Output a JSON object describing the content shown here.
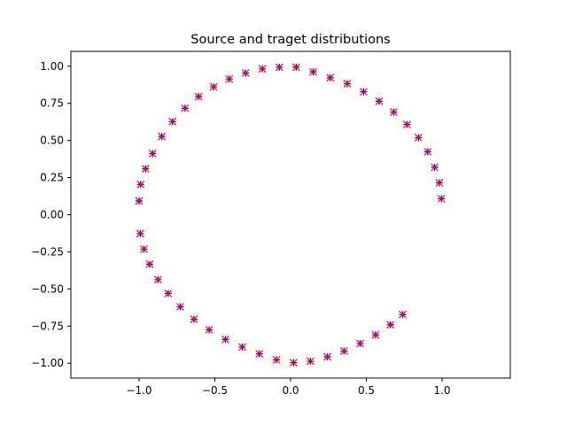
{
  "chart_data": {
    "type": "scatter",
    "title": "Source and traget distributions",
    "xlabel": "",
    "ylabel": "",
    "xlim": [
      -1.45,
      1.45
    ],
    "ylim": [
      -1.1,
      1.1
    ],
    "xticks": [
      -1.0,
      -0.5,
      0.0,
      0.5,
      1.0
    ],
    "xtick_labels": [
      "−1.0",
      "−0.5",
      "0.0",
      "0.5",
      "1.0"
    ],
    "yticks": [
      1.0,
      0.75,
      0.5,
      0.25,
      0.0,
      -0.25,
      -0.5,
      -0.75,
      -1.0
    ],
    "ytick_labels": [
      "1.00",
      "0.75",
      "0.50",
      "0.25",
      "0.00",
      "−0.25",
      "−0.50",
      "−0.75",
      "−1.00"
    ],
    "grid": false,
    "legend": false,
    "series": [
      {
        "marker": "+",
        "color": "#0000ff",
        "x": [
          0.995,
          0.982,
          0.951,
          0.905,
          0.844,
          0.768,
          0.681,
          0.584,
          0.482,
          0.374,
          0.262,
          0.149,
          0.037,
          -0.074,
          -0.186,
          -0.297,
          -0.405,
          -0.508,
          -0.607,
          -0.697,
          -0.779,
          -0.85,
          -0.91,
          -0.957,
          -0.99,
          -1.0,
          -0.992,
          -0.968,
          -0.93,
          -0.875,
          -0.808,
          -0.728,
          -0.637,
          -0.537,
          -0.43,
          -0.319,
          -0.206,
          -0.093,
          0.02,
          0.131,
          0.243,
          0.353,
          0.459,
          0.561,
          0.659,
          0.74
        ],
        "y": [
          0.108,
          0.215,
          0.319,
          0.424,
          0.519,
          0.608,
          0.691,
          0.764,
          0.828,
          0.882,
          0.922,
          0.962,
          0.994,
          0.993,
          0.982,
          0.954,
          0.914,
          0.861,
          0.795,
          0.717,
          0.627,
          0.527,
          0.412,
          0.309,
          0.204,
          0.093,
          -0.127,
          -0.232,
          -0.333,
          -0.437,
          -0.53,
          -0.62,
          -0.704,
          -0.775,
          -0.84,
          -0.891,
          -0.937,
          -0.977,
          -0.996,
          -0.987,
          -0.957,
          -0.918,
          -0.867,
          -0.809,
          -0.741,
          -0.672
        ]
      },
      {
        "marker": "x",
        "color": "#ff0000",
        "x": [
          0.995,
          0.982,
          0.951,
          0.905,
          0.844,
          0.768,
          0.681,
          0.584,
          0.482,
          0.374,
          0.262,
          0.149,
          0.037,
          -0.074,
          -0.186,
          -0.297,
          -0.405,
          -0.508,
          -0.607,
          -0.697,
          -0.779,
          -0.85,
          -0.91,
          -0.957,
          -0.99,
          -1.0,
          -0.992,
          -0.968,
          -0.93,
          -0.875,
          -0.808,
          -0.728,
          -0.637,
          -0.537,
          -0.43,
          -0.319,
          -0.206,
          -0.093,
          0.02,
          0.131,
          0.243,
          0.353,
          0.459,
          0.561,
          0.659,
          0.74
        ],
        "y": [
          0.108,
          0.215,
          0.319,
          0.424,
          0.519,
          0.608,
          0.691,
          0.764,
          0.828,
          0.882,
          0.922,
          0.962,
          0.994,
          0.993,
          0.982,
          0.954,
          0.914,
          0.861,
          0.795,
          0.717,
          0.627,
          0.527,
          0.412,
          0.309,
          0.204,
          0.093,
          -0.127,
          -0.232,
          -0.333,
          -0.437,
          -0.53,
          -0.62,
          -0.704,
          -0.775,
          -0.84,
          -0.891,
          -0.937,
          -0.977,
          -0.996,
          -0.987,
          -0.957,
          -0.918,
          -0.867,
          -0.809,
          -0.741,
          -0.672
        ]
      }
    ]
  }
}
